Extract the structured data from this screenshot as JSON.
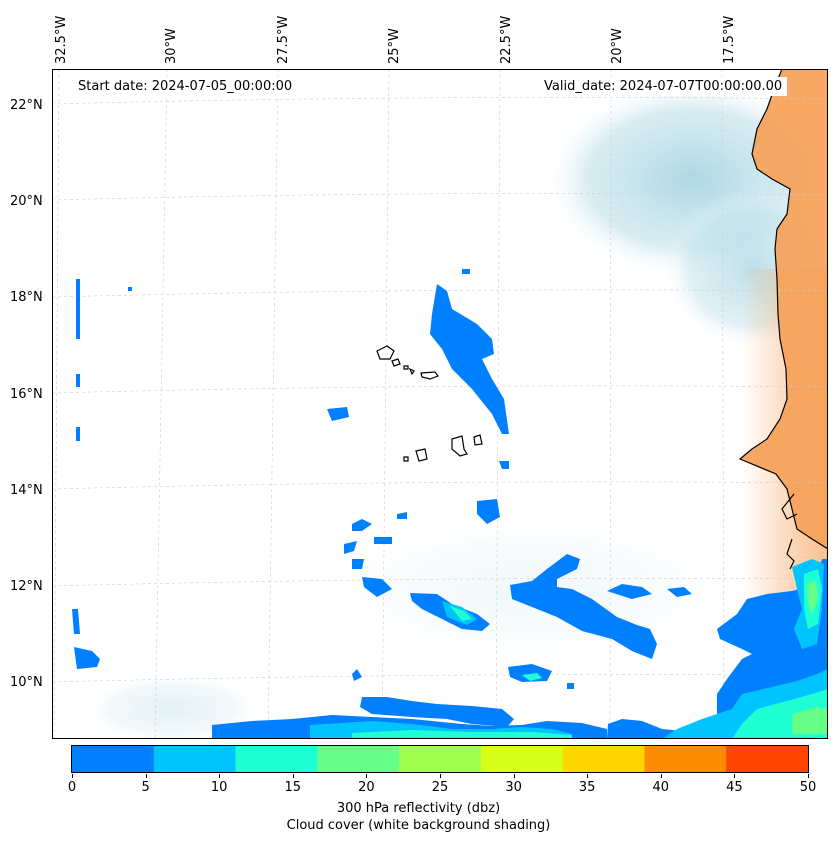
{
  "map": {
    "start_date": "Start date: 2024-07-05_00:00:00",
    "valid_date": "Valid_date: 2024-07-07T00:00:00.00",
    "longitude_labels": [
      "32.5°W",
      "30°W",
      "27.5°W",
      "25°W",
      "22.5°W",
      "20°W",
      "17.5°W"
    ],
    "latitude_labels": [
      "22°N",
      "20°N",
      "18°N",
      "16°N",
      "14°N",
      "12°N",
      "10°N"
    ]
  },
  "colorbar": {
    "ticks": [
      "0",
      "5",
      "10",
      "15",
      "20",
      "25",
      "30",
      "35",
      "40",
      "45",
      "50"
    ],
    "tick_values": [
      0,
      5,
      10,
      15,
      20,
      25,
      30,
      35,
      40,
      45,
      50
    ],
    "colors": [
      "#0080ff",
      "#00c4ff",
      "#1fffd4",
      "#66ff88",
      "#a0ff4a",
      "#d8ff1a",
      "#ffd700",
      "#ff8c00",
      "#ff4500"
    ],
    "title_line1": "300 hPa reflectivity (dbz)",
    "title_line2": "Cloud cover (white background shading)"
  },
  "colors": {
    "land": "#f5a35c",
    "cloud_shading": "#a9d6e2",
    "coastline": "#000000",
    "grid": "#cccccc"
  }
}
